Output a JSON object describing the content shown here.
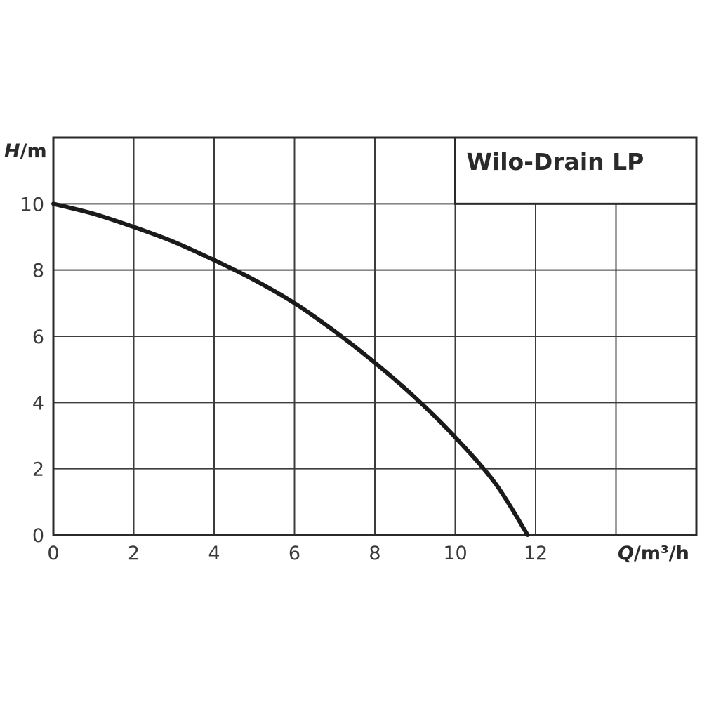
{
  "chart_data": {
    "type": "line",
    "title": "Wilo-Drain LP",
    "xlabel": "Q/m³/h",
    "ylabel": "H/m",
    "xlim": [
      0,
      16
    ],
    "ylim": [
      0,
      12
    ],
    "x_ticks": [
      "0",
      "2",
      "4",
      "6",
      "8",
      "10",
      "12"
    ],
    "y_ticks": [
      "0",
      "2",
      "4",
      "6",
      "8",
      "10"
    ],
    "grid": true,
    "legend": "none",
    "series": [
      {
        "name": "Wilo-Drain LP",
        "x": [
          0,
          1,
          2,
          3,
          4,
          5,
          6,
          7,
          8,
          9,
          10,
          11,
          11.8
        ],
        "y": [
          10.0,
          9.7,
          9.3,
          8.85,
          8.3,
          7.7,
          7.0,
          6.15,
          5.2,
          4.15,
          2.95,
          1.55,
          0.0
        ]
      }
    ]
  },
  "labels": {
    "title": "Wilo-Drain LP",
    "y_axis_title": "H/m",
    "x_axis_title": "Q/m³/h"
  },
  "colors": {
    "curve": "#1a1a1a",
    "grid": "#3c3c3c",
    "frame": "#2a2a2a",
    "text": "#3a3a3a"
  }
}
